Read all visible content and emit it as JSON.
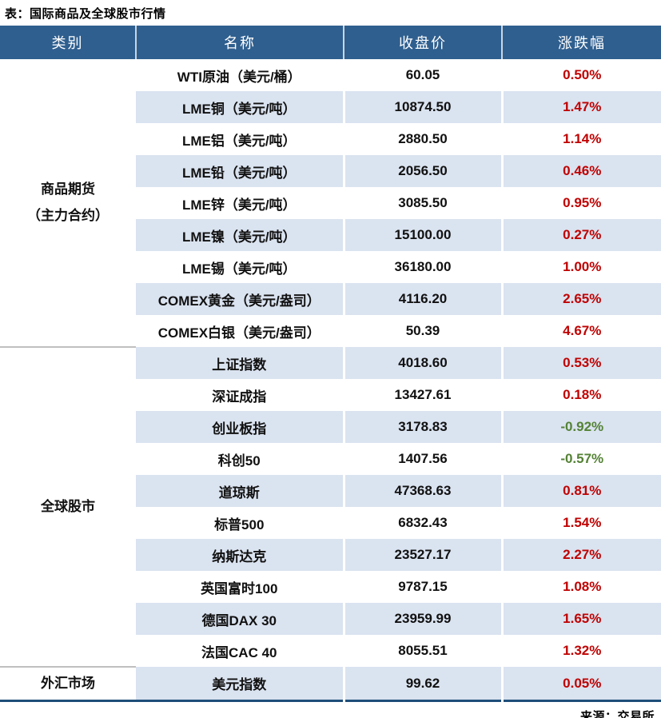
{
  "title": "表：国际商品及全球股市行情",
  "source": "来源：交易所",
  "colors": {
    "header_bg": "#2f5f8f",
    "stripe_bg": "#dae3f0",
    "up_red": "#c00000",
    "down_green": "#548235",
    "bottom_border": "#1f4e79",
    "group_separator": "#bfbfbf"
  },
  "table": {
    "headers": [
      "类别",
      "名称",
      "收盘价",
      "涨跌幅"
    ],
    "groups": [
      {
        "category": "商品期货\n（主力合约）",
        "rows": [
          {
            "name": "WTI原油（美元/桶）",
            "close": "60.05",
            "change": "0.50%"
          },
          {
            "name": "LME铜（美元/吨）",
            "close": "10874.50",
            "change": "1.47%"
          },
          {
            "name": "LME铝（美元/吨）",
            "close": "2880.50",
            "change": "1.14%"
          },
          {
            "name": "LME铅（美元/吨）",
            "close": "2056.50",
            "change": "0.46%"
          },
          {
            "name": "LME锌（美元/吨）",
            "close": "3085.50",
            "change": "0.95%"
          },
          {
            "name": "LME镍（美元/吨）",
            "close": "15100.00",
            "change": "0.27%"
          },
          {
            "name": "LME锡（美元/吨）",
            "close": "36180.00",
            "change": "1.00%"
          },
          {
            "name": "COMEX黄金（美元/盎司）",
            "close": "4116.20",
            "change": "2.65%"
          },
          {
            "name": "COMEX白银（美元/盎司）",
            "close": "50.39",
            "change": "4.67%"
          }
        ]
      },
      {
        "category": "全球股市",
        "rows": [
          {
            "name": "上证指数",
            "close": "4018.60",
            "change": "0.53%"
          },
          {
            "name": "深证成指",
            "close": "13427.61",
            "change": "0.18%"
          },
          {
            "name": "创业板指",
            "close": "3178.83",
            "change": "-0.92%"
          },
          {
            "name": "科创50",
            "close": "1407.56",
            "change": "-0.57%"
          },
          {
            "name": "道琼斯",
            "close": "47368.63",
            "change": "0.81%"
          },
          {
            "name": "标普500",
            "close": "6832.43",
            "change": "1.54%"
          },
          {
            "name": "纳斯达克",
            "close": "23527.17",
            "change": "2.27%"
          },
          {
            "name": "英国富时100",
            "close": "9787.15",
            "change": "1.08%"
          },
          {
            "name": "德国DAX 30",
            "close": "23959.99",
            "change": "1.65%"
          },
          {
            "name": "法国CAC 40",
            "close": "8055.51",
            "change": "1.32%"
          }
        ]
      },
      {
        "category": "外汇市场",
        "rows": [
          {
            "name": "美元指数",
            "close": "99.62",
            "change": "0.05%"
          }
        ]
      }
    ]
  },
  "chart_data": {
    "type": "table",
    "title": "表：国际商品及全球股市行情",
    "columns": [
      "类别",
      "名称",
      "收盘价",
      "涨跌幅"
    ],
    "rows": [
      [
        "商品期货（主力合约）",
        "WTI原油（美元/桶）",
        60.05,
        "0.50%"
      ],
      [
        "商品期货（主力合约）",
        "LME铜（美元/吨）",
        10874.5,
        "1.47%"
      ],
      [
        "商品期货（主力合约）",
        "LME铝（美元/吨）",
        2880.5,
        "1.14%"
      ],
      [
        "商品期货（主力合约）",
        "LME铅（美元/吨）",
        2056.5,
        "0.46%"
      ],
      [
        "商品期货（主力合约）",
        "LME锌（美元/吨）",
        3085.5,
        "0.95%"
      ],
      [
        "商品期货（主力合约）",
        "LME镍（美元/吨）",
        15100.0,
        "0.27%"
      ],
      [
        "商品期货（主力合约）",
        "LME锡（美元/吨）",
        36180.0,
        "1.00%"
      ],
      [
        "商品期货（主力合约）",
        "COMEX黄金（美元/盎司）",
        4116.2,
        "2.65%"
      ],
      [
        "商品期货（主力合约）",
        "COMEX白银（美元/盎司）",
        50.39,
        "4.67%"
      ],
      [
        "全球股市",
        "上证指数",
        4018.6,
        "0.53%"
      ],
      [
        "全球股市",
        "深证成指",
        13427.61,
        "0.18%"
      ],
      [
        "全球股市",
        "创业板指",
        3178.83,
        "-0.92%"
      ],
      [
        "全球股市",
        "科创50",
        1407.56,
        "-0.57%"
      ],
      [
        "全球股市",
        "道琼斯",
        47368.63,
        "0.81%"
      ],
      [
        "全球股市",
        "标普500",
        6832.43,
        "1.54%"
      ],
      [
        "全球股市",
        "纳斯达克",
        23527.17,
        "2.27%"
      ],
      [
        "全球股市",
        "英国富时100",
        9787.15,
        "1.08%"
      ],
      [
        "全球股市",
        "德国DAX 30",
        23959.99,
        "1.65%"
      ],
      [
        "全球股市",
        "法国CAC 40",
        8055.51,
        "1.32%"
      ],
      [
        "外汇市场",
        "美元指数",
        99.62,
        "0.05%"
      ]
    ],
    "source": "来源：交易所"
  }
}
